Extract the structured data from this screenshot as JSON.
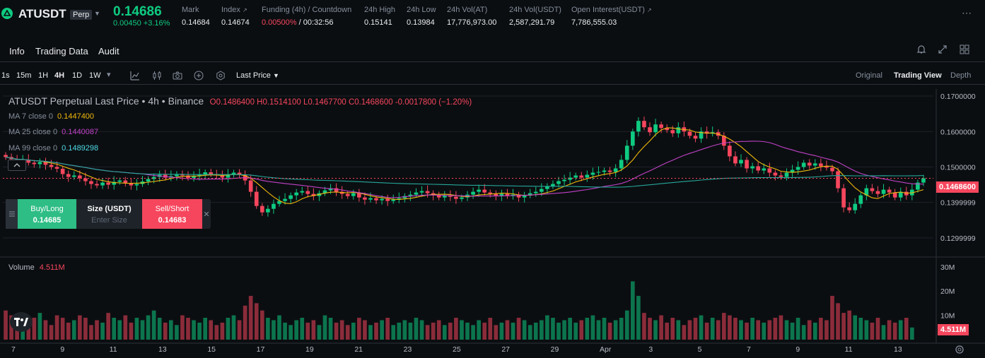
{
  "header": {
    "symbol": "ATUSDT",
    "badge": "Perp",
    "last_price": "0.14686",
    "change": "0.00450 +3.16%",
    "stats": [
      {
        "label": "Mark",
        "value": "0.14684"
      },
      {
        "label": "Index",
        "value": "0.14674"
      },
      {
        "label": "Funding (4h) / Countdown",
        "value_red": "0.00500%",
        "value": " / 00:32:56"
      },
      {
        "label": "24h High",
        "value": "0.15141"
      },
      {
        "label": "24h Low",
        "value": "0.13984"
      },
      {
        "label": "24h Vol(AT)",
        "value": "17,776,973.00"
      },
      {
        "label": "24h Vol(USDT)",
        "value": "2,587,291.79"
      },
      {
        "label": "Open Interest(USDT)",
        "value": "7,786,555.03"
      }
    ]
  },
  "tabs": [
    "Info",
    "Trading Data",
    "Audit"
  ],
  "intervals": [
    "1s",
    "15m",
    "1H",
    "4H",
    "1D",
    "1W"
  ],
  "active_interval": "4H",
  "price_type": "Last Price",
  "views": [
    "Original",
    "Trading View",
    "Depth"
  ],
  "active_view": "Trading View",
  "legend": {
    "title": "ATUSDT Perpetual Last Price • 4h • Binance",
    "ohlc": "O0.1486400  H0.1514100  L0.1467700  C0.1468600  -0.0017800 (−1.20%)",
    "ma7_label": "MA 7 close 0",
    "ma7_value": "0.1447400",
    "ma25_label": "MA 25 close 0",
    "ma25_value": "0.1440087",
    "ma99_label": "MA 99 close 0",
    "ma99_value": "0.1489298",
    "volume_label": "Volume",
    "volume_value": "4.511M"
  },
  "order_widget": {
    "buy_label": "Buy/Long",
    "buy_price": "0.14685",
    "size_label": "Size (USDT)",
    "size_placeholder": "Enter Size",
    "sell_label": "Sell/Short",
    "sell_price": "0.14683"
  },
  "price_axis": [
    "0.1700000",
    "0.1600000",
    "0.1500000",
    "0.1399999",
    "0.1299999"
  ],
  "current_price_tag": "0.1468600",
  "volume_axis": [
    "30M",
    "20M",
    "10M"
  ],
  "volume_tag": "4.511M",
  "date_axis": [
    "7",
    "9",
    "11",
    "13",
    "15",
    "17",
    "19",
    "21",
    "23",
    "25",
    "27",
    "29",
    "Apr",
    "3",
    "5",
    "7",
    "9",
    "11",
    "13"
  ],
  "colors": {
    "up": "#0ecb81",
    "down": "#f6465d",
    "ma7": "#f0b90b",
    "ma25": "#c042c7",
    "ma99": "#26a69a"
  },
  "chart_data": {
    "type": "candlestick",
    "ylim": [
      0.125,
      0.172
    ],
    "volume_ylim": [
      0,
      34
    ],
    "closes": [
      0.1528,
      0.1522,
      0.1516,
      0.152,
      0.1512,
      0.1508,
      0.1514,
      0.1506,
      0.15,
      0.1495,
      0.148,
      0.1472,
      0.1476,
      0.1468,
      0.146,
      0.1452,
      0.1448,
      0.1456,
      0.145,
      0.1458,
      0.1462,
      0.1455,
      0.1448,
      0.1452,
      0.1459,
      0.1466,
      0.1472,
      0.1478,
      0.147,
      0.1474,
      0.148,
      0.1476,
      0.1469,
      0.1474,
      0.1479,
      0.1485,
      0.148,
      0.1476,
      0.147,
      0.1478,
      0.1484,
      0.1478,
      0.1462,
      0.143,
      0.139,
      0.1372,
      0.1382,
      0.1396,
      0.1404,
      0.141,
      0.142,
      0.1428,
      0.1432,
      0.1424,
      0.1418,
      0.1426,
      0.1434,
      0.144,
      0.143,
      0.1424,
      0.1418,
      0.1426,
      0.1414,
      0.1408,
      0.1412,
      0.1406,
      0.141,
      0.1404,
      0.1408,
      0.1412,
      0.1418,
      0.1422,
      0.1428,
      0.1432,
      0.1426,
      0.142,
      0.1414,
      0.142,
      0.1416,
      0.141,
      0.1414,
      0.1422,
      0.143,
      0.1436,
      0.1428,
      0.1424,
      0.1418,
      0.1424,
      0.1418,
      0.1422,
      0.1414,
      0.142,
      0.1426,
      0.143,
      0.1438,
      0.1446,
      0.1452,
      0.146,
      0.1464,
      0.147,
      0.1476,
      0.147,
      0.1478,
      0.1484,
      0.1486,
      0.149,
      0.1486,
      0.1496,
      0.152,
      0.156,
      0.16,
      0.163,
      0.1612,
      0.1598,
      0.162,
      0.161,
      0.1604,
      0.1595,
      0.1612,
      0.16,
      0.1588,
      0.158,
      0.16,
      0.1594,
      0.1598,
      0.1588,
      0.156,
      0.153,
      0.151,
      0.152,
      0.1496,
      0.1502,
      0.149,
      0.1496,
      0.1484,
      0.1476,
      0.1472,
      0.1484,
      0.1492,
      0.15,
      0.1512,
      0.1504,
      0.151,
      0.1502,
      0.1498,
      0.1488,
      0.144,
      0.1386,
      0.1378,
      0.1396,
      0.142,
      0.144,
      0.1432,
      0.1424,
      0.1436,
      0.1428,
      0.1414,
      0.143,
      0.142,
      0.1436,
      0.1456,
      0.1468
    ],
    "volumes": [
      12,
      10,
      9,
      8,
      7,
      9,
      11,
      8,
      6,
      10,
      9,
      7,
      8,
      10,
      9,
      6,
      8,
      7,
      11,
      9,
      8,
      10,
      7,
      9,
      8,
      10,
      12,
      9,
      7,
      8,
      6,
      10,
      9,
      8,
      7,
      9,
      8,
      6,
      7,
      9,
      10,
      8,
      14,
      18,
      15,
      12,
      9,
      8,
      10,
      7,
      6,
      8,
      9,
      7,
      8,
      6,
      10,
      9,
      7,
      8,
      6,
      7,
      9,
      8,
      6,
      7,
      8,
      9,
      6,
      7,
      8,
      7,
      9,
      8,
      6,
      7,
      8,
      6,
      7,
      9,
      8,
      7,
      6,
      8,
      7,
      9,
      6,
      7,
      8,
      7,
      9,
      8,
      6,
      7,
      8,
      10,
      9,
      7,
      8,
      9,
      7,
      8,
      9,
      10,
      8,
      9,
      7,
      8,
      9,
      12,
      24,
      18,
      11,
      9,
      8,
      10,
      7,
      9,
      8,
      6,
      8,
      9,
      10,
      7,
      9,
      8,
      11,
      10,
      9,
      8,
      7,
      9,
      8,
      7,
      8,
      9,
      10,
      8,
      7,
      9,
      6,
      8,
      7,
      9,
      8,
      18,
      15,
      11,
      12,
      10,
      9,
      8,
      7,
      9,
      6,
      8,
      7,
      8,
      9,
      5
    ]
  }
}
